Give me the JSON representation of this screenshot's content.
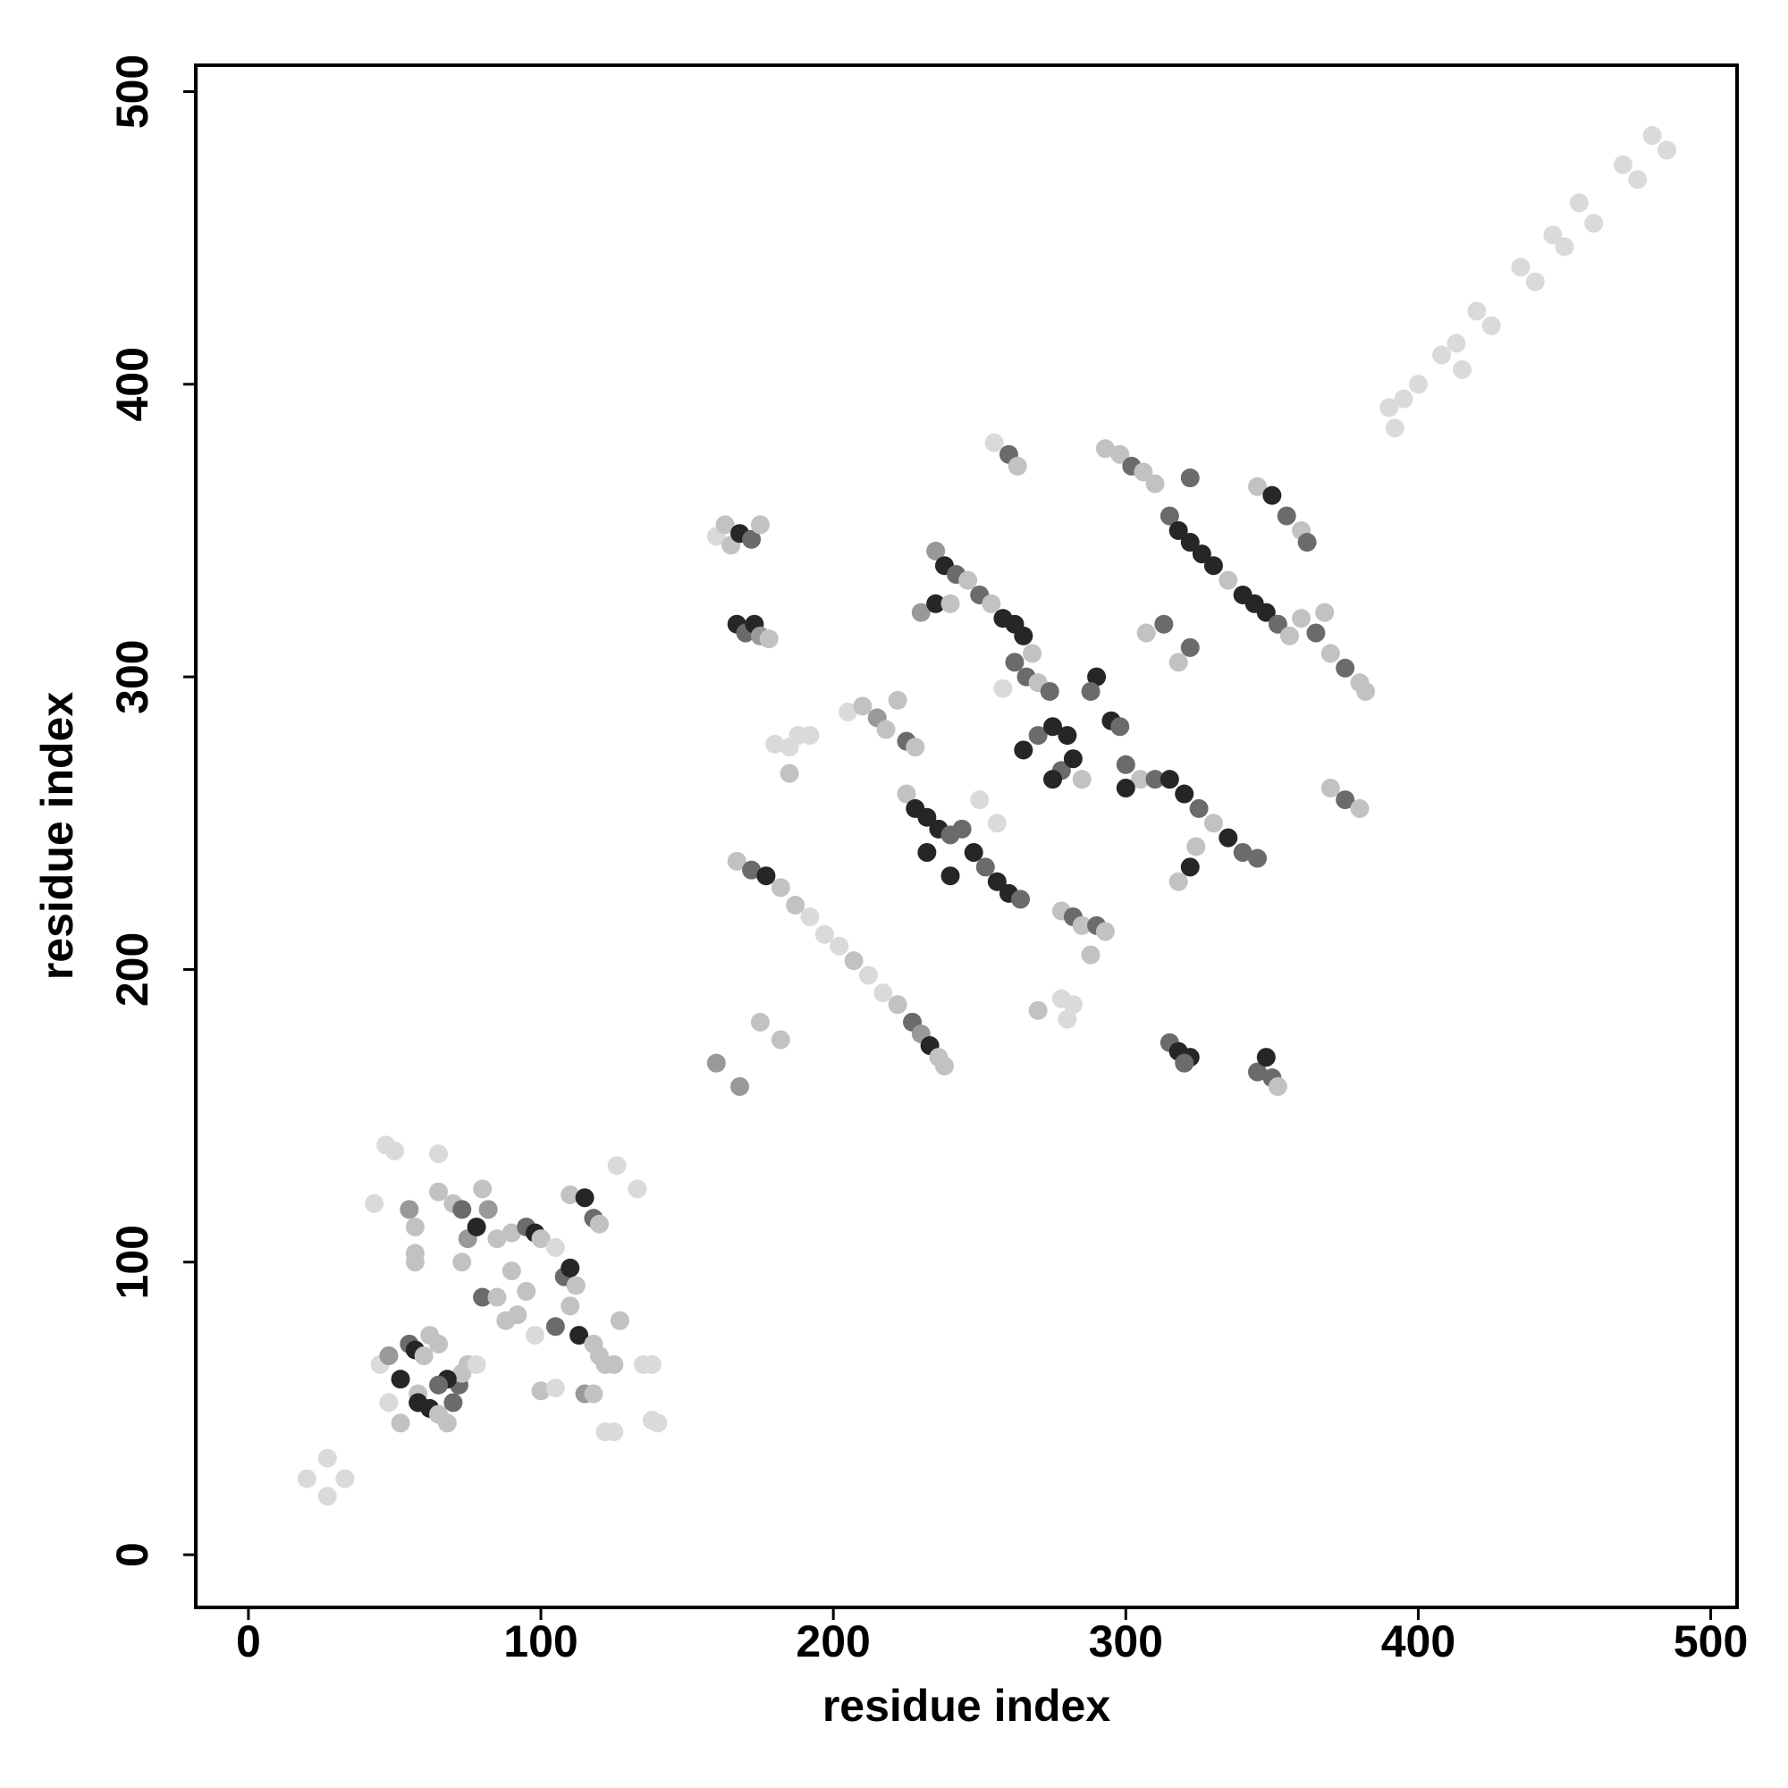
{
  "chart_data": {
    "type": "scatter",
    "x_label": "residue index",
    "y_label": "residue index",
    "xlim": [
      -18,
      509
    ],
    "ylim": [
      -18,
      509
    ],
    "xticks": [
      0,
      100,
      200,
      300,
      400,
      500
    ],
    "yticks": [
      0,
      100,
      200,
      300,
      400,
      500
    ],
    "x": [
      20,
      27,
      27,
      33,
      43,
      47,
      50,
      55,
      57,
      57,
      57,
      65,
      65,
      70,
      73,
      75,
      78,
      80,
      82,
      85,
      90,
      95,
      98,
      100,
      105,
      110,
      115,
      118,
      120,
      126,
      133,
      73,
      80,
      85,
      88,
      92,
      90,
      95,
      98,
      105,
      108,
      110,
      112,
      110,
      113,
      118,
      120,
      122,
      127,
      125,
      135,
      138,
      45,
      48,
      52,
      55,
      57,
      60,
      62,
      65,
      58,
      58,
      62,
      65,
      68,
      70,
      72,
      73,
      75,
      78,
      48,
      52,
      100,
      105,
      115,
      118,
      122,
      125,
      140,
      138,
      68,
      65,
      160,
      163,
      165,
      168,
      172,
      175,
      167,
      170,
      173,
      175,
      178,
      160,
      168,
      175,
      182,
      180,
      185,
      188,
      192,
      185,
      167,
      172,
      177,
      182,
      187,
      192,
      197,
      202,
      207,
      212,
      217,
      222,
      227,
      230,
      233,
      236,
      238,
      205,
      210,
      215,
      218,
      222,
      225,
      228,
      225,
      228,
      232,
      236,
      240,
      244,
      248,
      252,
      256,
      260,
      264,
      232,
      240,
      250,
      256,
      235,
      238,
      242,
      246,
      250,
      254,
      258,
      262,
      265,
      268,
      262,
      266,
      270,
      274,
      230,
      235,
      240,
      258,
      255,
      260,
      263,
      265,
      270,
      275,
      280,
      278,
      282,
      285,
      275,
      290,
      288,
      270,
      278,
      282,
      285,
      290,
      293,
      288,
      278,
      282,
      280,
      295,
      298,
      300,
      305,
      310,
      315,
      320,
      325,
      330,
      335,
      340,
      345,
      322,
      324,
      318,
      300,
      315,
      318,
      322,
      320,
      345,
      350,
      348,
      352,
      293,
      298,
      302,
      306,
      310,
      315,
      318,
      322,
      326,
      330,
      335,
      340,
      344,
      348,
      352,
      356,
      322,
      307,
      313,
      318,
      322,
      345,
      350,
      355,
      360,
      362,
      360,
      365,
      370,
      375,
      380,
      382,
      368,
      370,
      375,
      380,
      390,
      395,
      400,
      392,
      408,
      413,
      415,
      420,
      425,
      435,
      440,
      446,
      450,
      455,
      460,
      470,
      475,
      480,
      485
    ],
    "values": [
      26,
      33,
      20,
      26,
      120,
      140,
      138,
      118,
      112,
      100,
      103,
      137,
      124,
      120,
      118,
      108,
      112,
      125,
      118,
      108,
      110,
      112,
      110,
      108,
      105,
      123,
      122,
      115,
      113,
      133,
      125,
      100,
      88,
      88,
      80,
      82,
      97,
      90,
      75,
      78,
      95,
      98,
      92,
      85,
      75,
      72,
      68,
      65,
      80,
      65,
      65,
      65,
      65,
      68,
      60,
      72,
      70,
      68,
      75,
      72,
      55,
      52,
      50,
      48,
      45,
      52,
      58,
      62,
      65,
      65,
      52,
      45,
      56,
      57,
      55,
      55,
      42,
      42,
      45,
      46,
      60,
      58,
      348,
      352,
      345,
      349,
      347,
      352,
      318,
      315,
      318,
      314,
      313,
      168,
      160,
      182,
      176,
      277,
      276,
      280,
      280,
      267,
      237,
      234,
      232,
      228,
      222,
      218,
      212,
      208,
      203,
      198,
      192,
      188,
      182,
      178,
      174,
      170,
      167,
      288,
      290,
      286,
      282,
      292,
      278,
      276,
      260,
      255,
      252,
      248,
      246,
      248,
      240,
      235,
      230,
      226,
      224,
      240,
      232,
      258,
      250,
      343,
      338,
      335,
      333,
      328,
      325,
      320,
      318,
      314,
      308,
      305,
      300,
      298,
      295,
      322,
      325,
      325,
      296,
      380,
      376,
      372,
      275,
      280,
      283,
      280,
      268,
      272,
      265,
      265,
      300,
      295,
      186,
      220,
      218,
      215,
      215,
      213,
      205,
      190,
      188,
      183,
      285,
      283,
      270,
      265,
      265,
      265,
      260,
      255,
      250,
      245,
      240,
      238,
      235,
      242,
      230,
      262,
      175,
      172,
      170,
      168,
      165,
      163,
      170,
      160,
      378,
      376,
      372,
      370,
      366,
      355,
      350,
      346,
      342,
      338,
      333,
      328,
      325,
      322,
      318,
      314,
      368,
      315,
      318,
      305,
      310,
      365,
      362,
      355,
      350,
      346,
      320,
      315,
      308,
      303,
      298,
      295,
      322,
      262,
      258,
      255,
      392,
      395,
      400,
      385,
      410,
      414,
      405,
      425,
      420,
      440,
      435,
      451,
      447,
      462,
      455,
      475,
      470,
      485,
      480
    ],
    "colors": [
      "#dadada",
      "#dadada",
      "#dadada",
      "#dadada",
      "#dadada",
      "#dadada",
      "#dadada",
      "#999999",
      "#c2c2c2",
      "#c2c2c2",
      "#c2c2c2",
      "#dadada",
      "#c2c2c2",
      "#c2c2c2",
      "#6b6b6b",
      "#999999",
      "#262626",
      "#c2c2c2",
      "#999999",
      "#c2c2c2",
      "#c2c2c2",
      "#6b6b6b",
      "#262626",
      "#c2c2c2",
      "#dadada",
      "#c2c2c2",
      "#262626",
      "#6b6b6b",
      "#c2c2c2",
      "#dadada",
      "#dadada",
      "#c2c2c2",
      "#6b6b6b",
      "#c2c2c2",
      "#c2c2c2",
      "#c2c2c2",
      "#c2c2c2",
      "#c2c2c2",
      "#dadada",
      "#6b6b6b",
      "#6b6b6b",
      "#262626",
      "#c2c2c2",
      "#c2c2c2",
      "#262626",
      "#c2c2c2",
      "#c2c2c2",
      "#c2c2c2",
      "#c2c2c2",
      "#c2c2c2",
      "#dadada",
      "#dadada",
      "#dadada",
      "#999999",
      "#262626",
      "#6b6b6b",
      "#262626",
      "#c2c2c2",
      "#c2c2c2",
      "#c2c2c2",
      "#c2c2c2",
      "#262626",
      "#262626",
      "#c2c2c2",
      "#c2c2c2",
      "#6b6b6b",
      "#6b6b6b",
      "#c2c2c2",
      "#c2c2c2",
      "#dadada",
      "#dadada",
      "#c2c2c2",
      "#c2c2c2",
      "#dadada",
      "#999999",
      "#c2c2c2",
      "#dadada",
      "#dadada",
      "#dadada",
      "#dadada",
      "#262626",
      "#6b6b6b",
      "#dadada",
      "#c2c2c2",
      "#c2c2c2",
      "#262626",
      "#6b6b6b",
      "#c2c2c2",
      "#262626",
      "#6b6b6b",
      "#262626",
      "#999999",
      "#c2c2c2",
      "#999999",
      "#999999",
      "#c2c2c2",
      "#c2c2c2",
      "#dadada",
      "#dadada",
      "#dadada",
      "#dadada",
      "#c2c2c2",
      "#c2c2c2",
      "#6b6b6b",
      "#262626",
      "#c2c2c2",
      "#c2c2c2",
      "#dadada",
      "#dadada",
      "#dadada",
      "#c2c2c2",
      "#dadada",
      "#dadada",
      "#c2c2c2",
      "#6b6b6b",
      "#999999",
      "#262626",
      "#c2c2c2",
      "#c2c2c2",
      "#dadada",
      "#c2c2c2",
      "#999999",
      "#c2c2c2",
      "#c2c2c2",
      "#6b6b6b",
      "#c2c2c2",
      "#c2c2c2",
      "#262626",
      "#262626",
      "#262626",
      "#6b6b6b",
      "#6b6b6b",
      "#262626",
      "#6b6b6b",
      "#262626",
      "#262626",
      "#6b6b6b",
      "#262626",
      "#262626",
      "#dadada",
      "#dadada",
      "#999999",
      "#262626",
      "#6b6b6b",
      "#c2c2c2",
      "#6b6b6b",
      "#c2c2c2",
      "#262626",
      "#262626",
      "#262626",
      "#c2c2c2",
      "#6b6b6b",
      "#6b6b6b",
      "#c2c2c2",
      "#6b6b6b",
      "#999999",
      "#262626",
      "#c2c2c2",
      "#dadada",
      "#dadada",
      "#6b6b6b",
      "#c2c2c2",
      "#262626",
      "#6b6b6b",
      "#262626",
      "#262626",
      "#6b6b6b",
      "#262626",
      "#c2c2c2",
      "#262626",
      "#262626",
      "#6b6b6b",
      "#c2c2c2",
      "#c2c2c2",
      "#6b6b6b",
      "#c2c2c2",
      "#6b6b6b",
      "#c2c2c2",
      "#c2c2c2",
      "#dadada",
      "#dadada",
      "#dadada",
      "#262626",
      "#6b6b6b",
      "#6b6b6b",
      "#c2c2c2",
      "#6b6b6b",
      "#262626",
      "#262626",
      "#6b6b6b",
      "#c2c2c2",
      "#262626",
      "#6b6b6b",
      "#6b6b6b",
      "#262626",
      "#c2c2c2",
      "#c2c2c2",
      "#262626",
      "#6b6b6b",
      "#262626",
      "#262626",
      "#6b6b6b",
      "#6b6b6b",
      "#6b6b6b",
      "#262626",
      "#c2c2c2",
      "#c2c2c2",
      "#c2c2c2",
      "#6b6b6b",
      "#c2c2c2",
      "#c2c2c2",
      "#6b6b6b",
      "#262626",
      "#262626",
      "#262626",
      "#262626",
      "#c2c2c2",
      "#262626",
      "#262626",
      "#262626",
      "#6b6b6b",
      "#c2c2c2",
      "#6b6b6b",
      "#c2c2c2",
      "#6b6b6b",
      "#c2c2c2",
      "#6b6b6b",
      "#c2c2c2",
      "#262626",
      "#6b6b6b",
      "#c2c2c2",
      "#6b6b6b",
      "#c2c2c2",
      "#6b6b6b",
      "#c2c2c2",
      "#6b6b6b",
      "#c2c2c2",
      "#c2c2c2",
      "#c2c2c2",
      "#c2c2c2",
      "#6b6b6b",
      "#c2c2c2",
      "#dadada",
      "#dadada",
      "#dadada",
      "#dadada",
      "#dadada",
      "#dadada",
      "#dadada",
      "#dadada",
      "#dadada",
      "#dadada",
      "#dadada",
      "#dadada",
      "#dadada",
      "#dadada",
      "#dadada",
      "#dadada",
      "#dadada",
      "#dadada",
      "#dadada"
    ]
  }
}
